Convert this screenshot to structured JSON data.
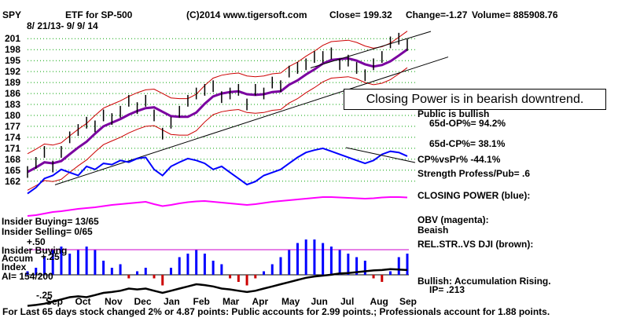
{
  "header": {
    "ticker": "SPY",
    "name": "ETF for SP-500",
    "source": "(C)2014 www.tigersoft.com",
    "close": "Close= 199.32",
    "change": "Change=-1.27",
    "volume": "Volume= 885908.76",
    "date_range": "8/ 21/13- 9/ 9/ 14"
  },
  "callout": "Closing Power is in bearish downtrend.",
  "stats": {
    "public_bullish": "Public is bullish",
    "op": "65d-OP%= 94.2%",
    "cp": "65d-CP%= 38.1%",
    "cp_vs_pr": "CP%vsPr% -44.1%",
    "strength": "Strength Profess/Pub= .6"
  },
  "labels": {
    "closing_power": "CLOSING POWER (blue):",
    "obv": "OBV (magenta):",
    "obv_state": "Beaish",
    "rel_str": "REL.STR..VS DJI (brown):",
    "insider_buying_ratio": "Insider Buying= 13/65",
    "insider_selling_ratio": "Insider Selling= 0/65",
    "insider_buying": "Insider Buying",
    "accum": "Accum",
    "index": "Index",
    "ai": "AI= 154/200",
    "plus50": "+.50",
    "plus25": "+.25",
    "minus25": "-.25",
    "bullish": "Bullish: Accumulation Rising.",
    "ip": "IP= .213"
  },
  "footer": "For Last 65 days stock changed 2% or 4.87 points: Public accounts for 2.99 points.; Professionals account for 1.88 points.",
  "colors": {
    "price": "#000000",
    "upper_band": "#cc0000",
    "ma": "#7a00a0",
    "closing_power": "#0000ff",
    "obv": "#ff00ff",
    "accum_pos": "#0000ff",
    "accum_neg": "#cc0000",
    "rel_str": "#000000",
    "grid": "#00a000"
  },
  "chart_data": {
    "type": "line",
    "title": "ETF for SP-500",
    "xlabel": "",
    "ylabel": "",
    "x_ticks": [
      "Sep",
      "Oct",
      "Nov",
      "Dec",
      "Jan",
      "Feb",
      "Mar",
      "Apr",
      "May",
      "Jun",
      "Jul",
      "Aug",
      "Sep"
    ],
    "y_ticks": [
      201,
      198,
      195,
      192,
      189,
      186,
      183,
      180,
      177,
      174,
      171,
      168,
      165,
      162
    ],
    "ylim": [
      160,
      203
    ],
    "grid": true,
    "series": [
      {
        "name": "",
        "values": [
          164.5,
          167,
          170,
          166,
          170,
          174,
          176,
          178,
          177,
          180,
          179,
          181,
          184,
          182,
          184,
          180,
          175,
          178,
          181,
          184,
          186,
          187,
          188,
          185,
          186,
          187,
          183,
          187,
          186,
          189,
          188,
          192,
          193,
          194,
          196,
          196,
          197,
          194,
          195,
          193,
          191,
          194,
          196,
          200,
          201,
          199.3
        ]
      },
      {
        "name": "CLOSING POWER (blue):",
        "values": [
          0.2,
          0.3,
          0.45,
          0.5,
          0.6,
          0.55,
          0.5,
          0.65,
          0.6,
          0.7,
          0.68,
          0.75,
          0.72,
          0.78,
          0.8,
          0.6,
          0.5,
          0.65,
          0.72,
          0.78,
          0.75,
          0.7,
          0.6,
          0.65,
          0.55,
          0.45,
          0.35,
          0.4,
          0.5,
          0.55,
          0.6,
          0.7,
          0.8,
          0.88,
          0.92,
          0.95,
          0.9,
          0.85,
          0.8,
          0.75,
          0.7,
          0.75,
          0.85,
          0.9,
          0.88,
          0.82
        ]
      },
      {
        "name": "OBV (magenta):",
        "values": [
          0.3,
          0.32,
          0.36,
          0.4,
          0.42,
          0.45,
          0.48,
          0.5,
          0.52,
          0.55,
          0.58,
          0.6,
          0.62,
          0.64,
          0.66,
          0.6,
          0.55,
          0.58,
          0.62,
          0.65,
          0.67,
          0.68,
          0.66,
          0.64,
          0.62,
          0.6,
          0.58,
          0.6,
          0.63,
          0.66,
          0.68,
          0.7,
          0.72,
          0.74,
          0.76,
          0.78,
          0.78,
          0.77,
          0.76,
          0.75,
          0.74,
          0.75,
          0.77,
          0.78,
          0.78,
          0.77
        ]
      },
      {
        "name": "REL.STR..VS DJI (brown):",
        "values": [
          0.1,
          0.12,
          0.15,
          0.2,
          0.25,
          0.3,
          0.32,
          0.3,
          0.35,
          0.4,
          0.42,
          0.45,
          0.5,
          0.48,
          0.5,
          0.45,
          0.4,
          0.45,
          0.5,
          0.55,
          0.6,
          0.58,
          0.55,
          0.5,
          0.48,
          0.45,
          0.42,
          0.45,
          0.5,
          0.55,
          0.6,
          0.65,
          0.7,
          0.75,
          0.78,
          0.8,
          0.82,
          0.85,
          0.86,
          0.88,
          0.9,
          0.92,
          0.93,
          0.95,
          0.94,
          0.93
        ]
      },
      {
        "name": "Accum Index",
        "values": [
          0.05,
          0.1,
          0.25,
          0.35,
          0.4,
          0.3,
          0.35,
          0.4,
          0.35,
          0.2,
          0.1,
          0.15,
          -0.05,
          0.05,
          0.1,
          -0.05,
          -0.15,
          0.1,
          0.25,
          0.3,
          0.35,
          0.3,
          0.2,
          0.15,
          -0.05,
          -0.1,
          -0.15,
          -0.05,
          0.05,
          0.15,
          0.25,
          0.35,
          0.45,
          0.5,
          0.5,
          0.45,
          0.4,
          0.35,
          0.3,
          0.25,
          0.2,
          -0.05,
          -0.1,
          0.05,
          0.25,
          0.3
        ]
      }
    ]
  }
}
